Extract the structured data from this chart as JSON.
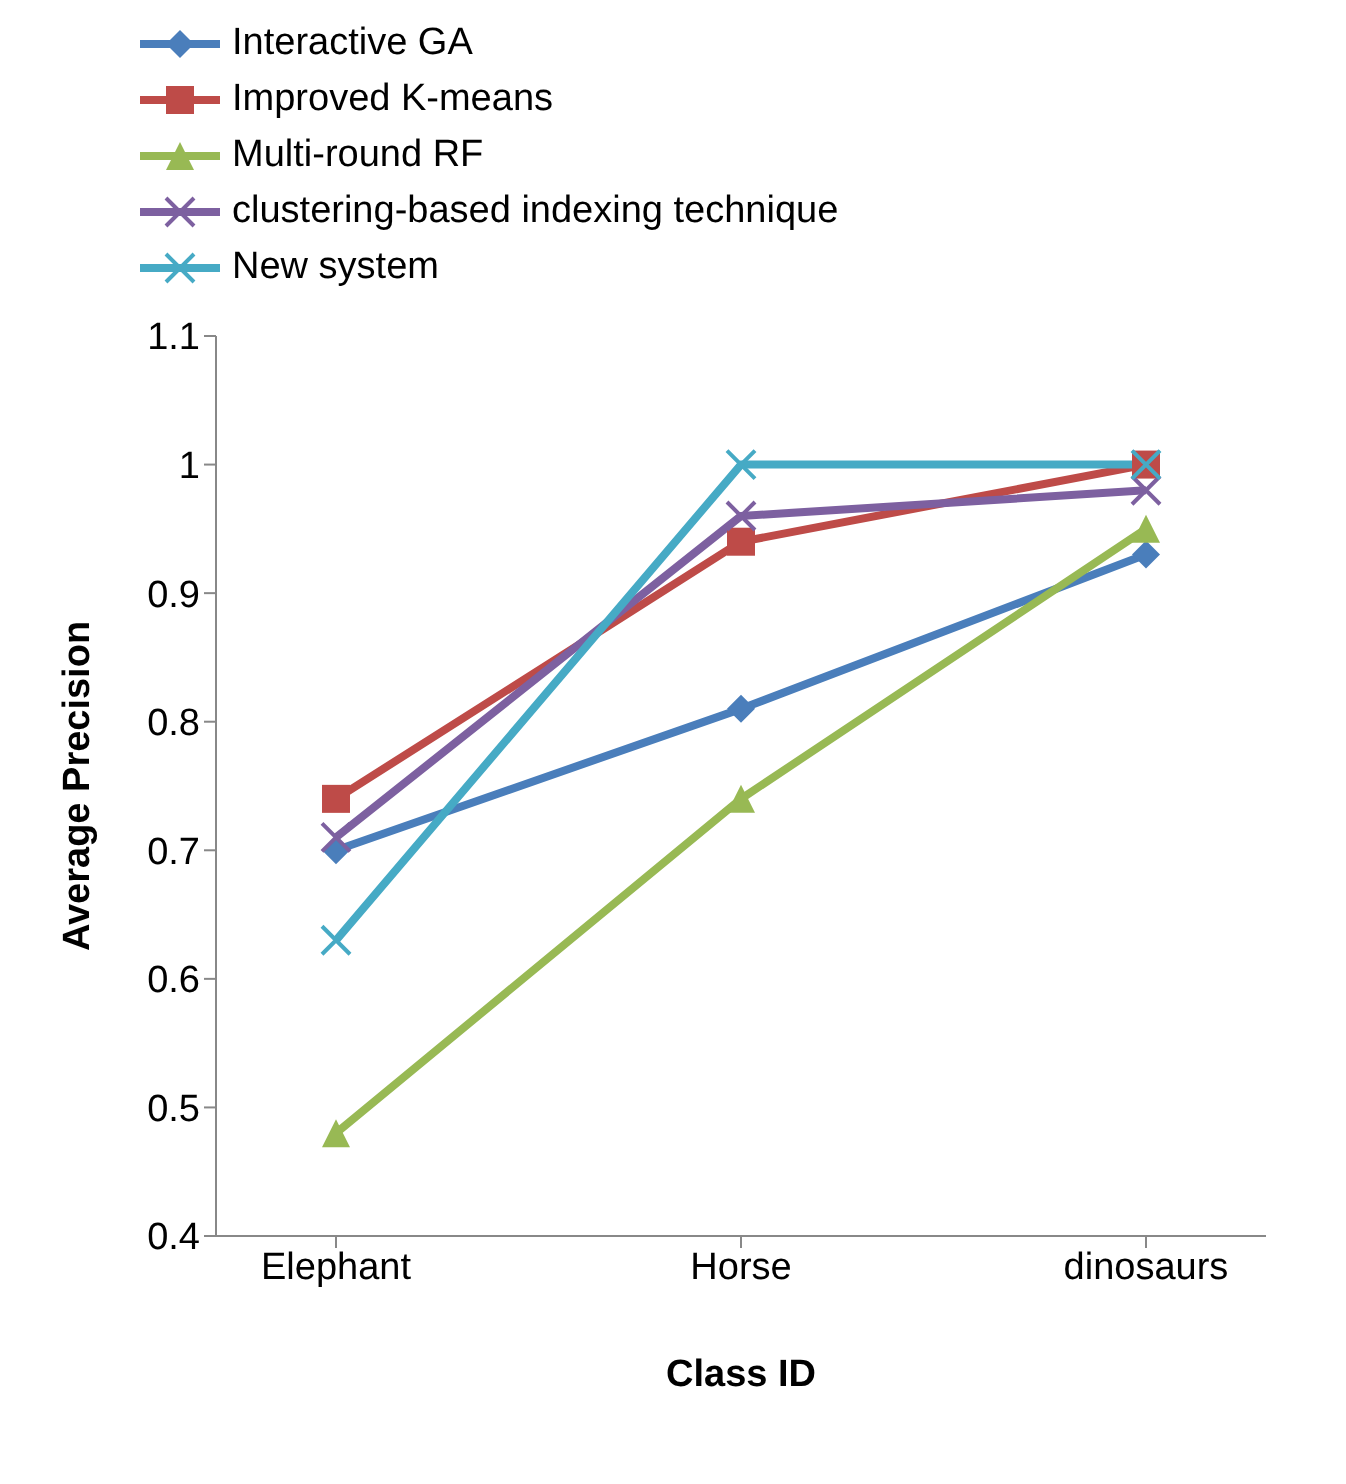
{
  "chart_data": {
    "type": "line",
    "xlabel": "Class ID",
    "ylabel": "Average Precision",
    "categories": [
      "Elephant",
      "Horse",
      "dinosaurs"
    ],
    "series": [
      {
        "name": "Interactive GA",
        "color": "#4a7ebb",
        "marker": "diamond",
        "values": [
          0.7,
          0.81,
          0.93
        ]
      },
      {
        "name": "Improved K-means",
        "color": "#be4b48",
        "marker": "square",
        "values": [
          0.74,
          0.94,
          1.0
        ]
      },
      {
        "name": "Multi-round RF",
        "color": "#98b954",
        "marker": "triangle",
        "values": [
          0.48,
          0.74,
          0.95
        ]
      },
      {
        "name": "clustering-based indexing technique",
        "color": "#7d60a0",
        "marker": "cross",
        "values": [
          0.71,
          0.96,
          0.98
        ]
      },
      {
        "name": "New system",
        "color": "#46aac5",
        "marker": "cross",
        "values": [
          0.63,
          1.0,
          1.0
        ]
      }
    ],
    "ylim": [
      0.4,
      1.1
    ],
    "yticks": [
      0.4,
      0.5,
      0.6,
      0.7,
      0.8,
      0.9,
      1,
      1.1
    ],
    "grid": false,
    "legend": "top"
  }
}
